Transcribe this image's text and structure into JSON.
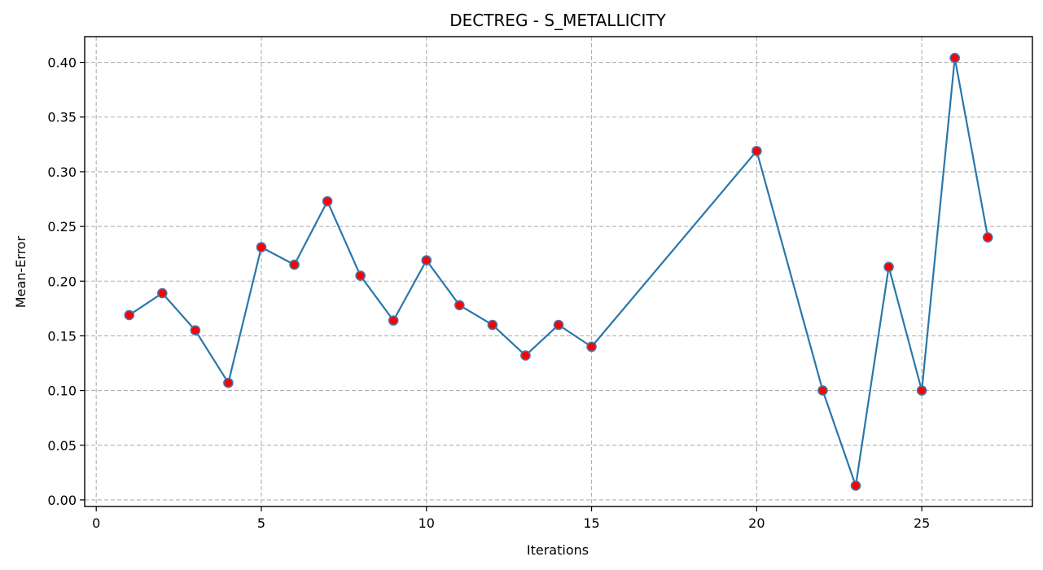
{
  "chart_data": {
    "type": "line",
    "title": "DECTREG - S_METALLICITY",
    "xlabel": "Iterations",
    "ylabel": "Mean-Error",
    "xlim": [
      -0.35,
      28.35
    ],
    "ylim": [
      -0.006,
      0.4235
    ],
    "x_ticks": [
      0,
      5,
      10,
      15,
      20,
      25
    ],
    "y_ticks": [
      0.0,
      0.05,
      0.1,
      0.15,
      0.2,
      0.25,
      0.3,
      0.35,
      0.4
    ],
    "x_tick_labels": [
      "0",
      "5",
      "10",
      "15",
      "20",
      "25"
    ],
    "y_tick_labels": [
      "0.00",
      "0.05",
      "0.10",
      "0.15",
      "0.20",
      "0.25",
      "0.30",
      "0.35",
      "0.40"
    ],
    "grid": true,
    "line_color": "#2a77aa",
    "marker_fill": "#ff0000",
    "marker_edge": "#4a74a8",
    "series": [
      {
        "x": [
          1,
          2,
          3,
          4,
          5,
          6,
          7,
          8,
          9,
          10,
          11,
          12,
          13,
          14,
          15,
          20,
          22,
          23,
          24,
          25,
          26,
          27
        ],
        "y": [
          0.169,
          0.189,
          0.155,
          0.107,
          0.231,
          0.215,
          0.273,
          0.205,
          0.164,
          0.219,
          0.178,
          0.16,
          0.132,
          0.16,
          0.14,
          0.319,
          0.1,
          0.013,
          0.213,
          0.1,
          0.404,
          0.24
        ]
      }
    ]
  }
}
